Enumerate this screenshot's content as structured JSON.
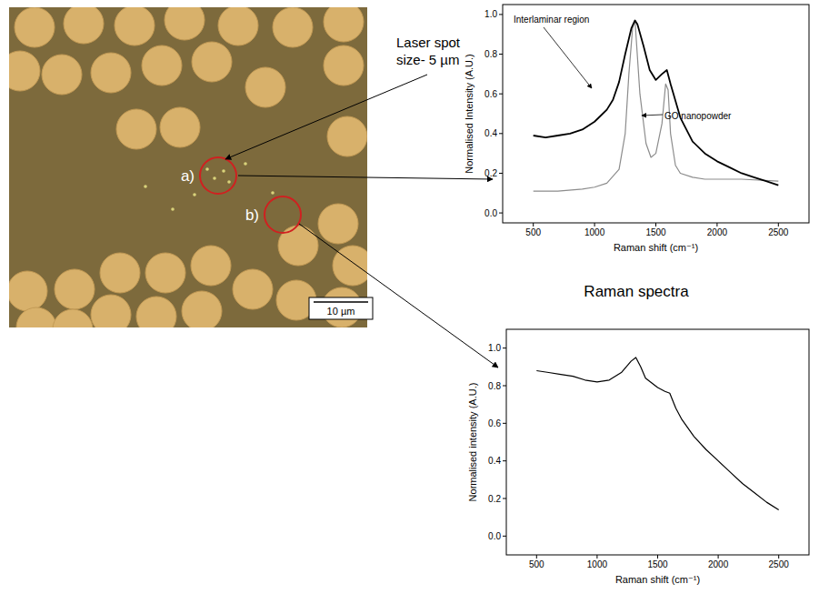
{
  "micrograph": {
    "labels": [
      "a)",
      "b)"
    ],
    "spot_note": "Laser spot size- 5 µm",
    "scale_bar": "10 µm"
  },
  "figure_title": "Raman spectra",
  "chart_data": [
    {
      "type": "line",
      "x_label": "Raman shift (cm⁻¹)",
      "y_label": "Normalised Intensity (A.U.)",
      "xlim": [
        250,
        2750
      ],
      "xticks": [
        500,
        1000,
        1500,
        2000,
        2500
      ],
      "ylim": [
        -0.05,
        1.05
      ],
      "yticks": [
        {
          "value": 0,
          "label": "0.0"
        },
        0.2,
        0.4,
        0.6,
        0.8,
        {
          "value": 1,
          "label": "1.0"
        }
      ],
      "grid": false,
      "series": [
        {
          "name": "Interlaminar region",
          "color": "#000000",
          "x": [
            500,
            600,
            700,
            800,
            900,
            1000,
            1100,
            1150,
            1200,
            1250,
            1300,
            1330,
            1350,
            1400,
            1450,
            1500,
            1550,
            1590,
            1620,
            1700,
            1800,
            1900,
            2000,
            2100,
            2200,
            2300,
            2400,
            2500
          ],
          "values": [
            0.39,
            0.38,
            0.39,
            0.4,
            0.42,
            0.46,
            0.52,
            0.57,
            0.66,
            0.8,
            0.93,
            0.97,
            0.95,
            0.84,
            0.72,
            0.67,
            0.7,
            0.72,
            0.65,
            0.48,
            0.36,
            0.3,
            0.26,
            0.23,
            0.2,
            0.18,
            0.16,
            0.14
          ]
        },
        {
          "name": "GO nanopowder",
          "color": "#8c8c8c",
          "x": [
            500,
            700,
            900,
            1000,
            1100,
            1200,
            1250,
            1280,
            1310,
            1330,
            1370,
            1420,
            1460,
            1500,
            1550,
            1580,
            1600,
            1620,
            1660,
            1700,
            1800,
            1900,
            2000,
            2200,
            2500
          ],
          "values": [
            0.11,
            0.11,
            0.12,
            0.13,
            0.15,
            0.22,
            0.4,
            0.7,
            0.93,
            0.97,
            0.6,
            0.35,
            0.28,
            0.3,
            0.45,
            0.65,
            0.62,
            0.4,
            0.24,
            0.2,
            0.18,
            0.17,
            0.17,
            0.17,
            0.16
          ]
        }
      ]
    },
    {
      "type": "line",
      "x_label": "Raman shift (cm⁻¹)",
      "y_label": "Normalised intensity (A.U.)",
      "xlim": [
        250,
        2750
      ],
      "xticks": [
        500,
        1000,
        1500,
        2000,
        2500
      ],
      "ylim": [
        -0.1,
        1.1
      ],
      "yticks": [
        {
          "value": 0,
          "label": "0.0"
        },
        0.2,
        0.4,
        0.6,
        0.8,
        {
          "value": 1,
          "label": "1.0"
        }
      ],
      "grid": false,
      "series": [
        {
          "color": "#000000",
          "x": [
            500,
            600,
            700,
            800,
            900,
            1000,
            1100,
            1200,
            1280,
            1320,
            1360,
            1400,
            1500,
            1560,
            1600,
            1650,
            1700,
            1800,
            1900,
            2000,
            2100,
            2200,
            2300,
            2400,
            2500
          ],
          "values": [
            0.88,
            0.87,
            0.86,
            0.85,
            0.83,
            0.82,
            0.83,
            0.87,
            0.93,
            0.95,
            0.9,
            0.84,
            0.79,
            0.77,
            0.76,
            0.68,
            0.62,
            0.53,
            0.46,
            0.4,
            0.34,
            0.28,
            0.23,
            0.18,
            0.14
          ]
        }
      ]
    }
  ]
}
